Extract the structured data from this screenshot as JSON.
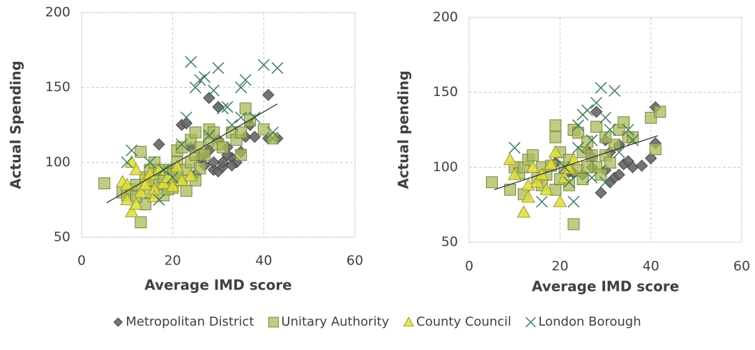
{
  "chart_data": [
    {
      "type": "scatter",
      "ylabel": "Actual Spending",
      "xlabel": "Average IMD score",
      "xlim": [
        0,
        60
      ],
      "xticks": [
        0,
        20,
        40,
        60
      ],
      "ylim": [
        50,
        200
      ],
      "yticks": [
        50,
        100,
        150,
        200
      ],
      "grid": true,
      "legend": "bottom",
      "trendline": {
        "x": [
          5.5,
          43
        ],
        "y": [
          73,
          139
        ],
        "color": "#333333"
      },
      "series": [
        {
          "name": "Metropolitan District",
          "marker": "diamond",
          "color": "#666666",
          "x": [
            17,
            22,
            23,
            26,
            27,
            28,
            28,
            29,
            30,
            30,
            31,
            31,
            32,
            33,
            34,
            35,
            36,
            37,
            38,
            41,
            41,
            43,
            29,
            27,
            25,
            30,
            33,
            24,
            20,
            32
          ],
          "values": [
            112,
            125,
            126,
            103,
            98,
            143,
            108,
            95,
            94,
            137,
            97,
            100,
            110,
            103,
            100,
            107,
            117,
            125,
            117,
            116,
            145,
            116,
            100,
            105,
            92,
            115,
            98,
            110,
            96,
            105
          ]
        },
        {
          "name": "Unitary Authority",
          "marker": "square",
          "color": "#a9bb5a",
          "x": [
            5,
            9,
            10,
            11,
            12,
            13,
            13,
            14,
            14,
            15,
            15,
            16,
            16,
            17,
            18,
            18,
            19,
            20,
            20,
            21,
            21,
            22,
            22,
            23,
            23,
            24,
            24,
            25,
            25,
            25,
            26,
            26,
            27,
            28,
            28,
            29,
            30,
            31,
            33,
            34,
            35,
            36,
            37,
            40,
            42,
            35,
            19,
            17,
            12,
            21
          ],
          "values": [
            86,
            80,
            78,
            82,
            85,
            107,
            60,
            90,
            72,
            95,
            80,
            88,
            100,
            85,
            90,
            78,
            95,
            92,
            83,
            108,
            100,
            110,
            88,
            95,
            81,
            100,
            115,
            120,
            105,
            88,
            96,
            110,
            105,
            122,
            115,
            120,
            112,
            110,
            120,
            115,
            120,
            136,
            128,
            122,
            116,
            105,
            82,
            95,
            77,
            91
          ]
        },
        {
          "name": "County Council",
          "marker": "triangle",
          "color": "#dede3c",
          "x": [
            9,
            10,
            11,
            11,
            12,
            12,
            13,
            14,
            15,
            16,
            17,
            18,
            19,
            20,
            21,
            22,
            24,
            14,
            10,
            16
          ],
          "values": [
            87,
            75,
            100,
            67,
            72,
            95,
            80,
            88,
            92,
            82,
            95,
            86,
            90,
            84,
            97,
            88,
            91,
            85,
            85,
            77
          ]
        },
        {
          "name": "London Borough",
          "marker": "x",
          "color": "#3d7a5c",
          "x": [
            10,
            11,
            18,
            20,
            23,
            24,
            25,
            26,
            27,
            28,
            29,
            30,
            31,
            32,
            35,
            36,
            38,
            40,
            42,
            43,
            33,
            35,
            22,
            15,
            17
          ],
          "values": [
            100,
            108,
            95,
            90,
            130,
            167,
            150,
            155,
            157,
            118,
            148,
            163,
            136,
            137,
            150,
            155,
            130,
            165,
            120,
            163,
            125,
            130,
            112,
            100,
            75
          ]
        }
      ]
    },
    {
      "type": "scatter",
      "ylabel": "Actual pending",
      "xlabel": "Average IMD score",
      "xlim": [
        0,
        60
      ],
      "xticks": [
        0,
        20,
        40,
        60
      ],
      "ylim": [
        50,
        200
      ],
      "yticks": [
        50,
        100,
        150,
        200
      ],
      "grid": true,
      "trendline": {
        "x": [
          5.5,
          41.5
        ],
        "y": [
          85,
          121
        ],
        "color": "#333333"
      },
      "series": [
        {
          "marker": "diamond",
          "color": "#666666",
          "x": [
            19,
            22,
            23,
            26,
            27,
            28,
            29,
            30,
            31,
            32,
            33,
            34,
            35,
            36,
            38,
            40,
            41,
            41,
            30,
            27,
            33,
            25,
            31
          ],
          "values": [
            103,
            97,
            96,
            111,
            107,
            137,
            83,
            98,
            90,
            93,
            95,
            102,
            104,
            100,
            101,
            106,
            116,
            140,
            118,
            100,
            115,
            95,
            110
          ]
        },
        {
          "marker": "square",
          "color": "#a9bb5a",
          "x": [
            5,
            9,
            10,
            11,
            12,
            12,
            13,
            14,
            15,
            16,
            17,
            18,
            19,
            19,
            19,
            20,
            20,
            21,
            22,
            22,
            23,
            23,
            24,
            24,
            25,
            25,
            26,
            27,
            28,
            28,
            29,
            30,
            31,
            32,
            33,
            34,
            35,
            36,
            40,
            41,
            42,
            30,
            16,
            26
          ],
          "values": [
            90,
            85,
            100,
            96,
            82,
            100,
            105,
            108,
            93,
            100,
            95,
            101,
            85,
            128,
            120,
            110,
            92,
            100,
            105,
            88,
            62,
            125,
            123,
            98,
            110,
            92,
            117,
            108,
            127,
            100,
            95,
            108,
            103,
            115,
            125,
            130,
            120,
            120,
            133,
            112,
            137,
            120,
            88,
            100
          ]
        },
        {
          "marker": "triangle",
          "color": "#dede3c",
          "x": [
            9,
            10,
            12,
            13,
            14,
            15,
            16,
            17,
            18,
            19,
            20,
            21,
            22,
            23,
            13
          ],
          "values": [
            105,
            95,
            70,
            88,
            100,
            90,
            95,
            85,
            102,
            110,
            77,
            93,
            99,
            105,
            80
          ]
        },
        {
          "marker": "x",
          "color": "#3d7a5c",
          "x": [
            10,
            16,
            21,
            23,
            24,
            24,
            25,
            26,
            27,
            28,
            29,
            30,
            31,
            32,
            35,
            36,
            27,
            33,
            22,
            30
          ],
          "values": [
            113,
            77,
            100,
            77,
            128,
            113,
            135,
            138,
            118,
            143,
            153,
            133,
            125,
            151,
            125,
            118,
            93,
            110,
            90,
            90
          ]
        }
      ]
    }
  ]
}
